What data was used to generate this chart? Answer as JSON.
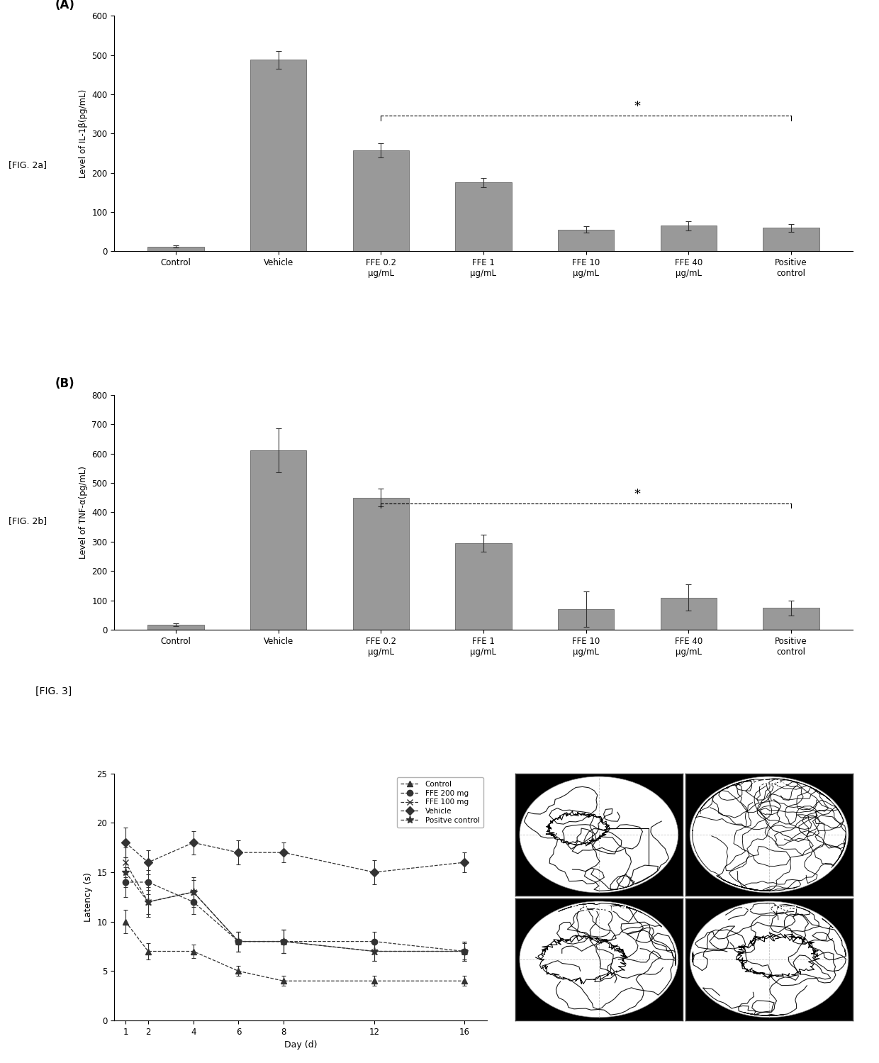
{
  "fig_a": {
    "title": "(A)",
    "categories": [
      "Control",
      "Vehicle",
      "FFE 0.2\nμg/mL",
      "FFE 1\nμg/mL",
      "FFE 10\nμg/mL",
      "FFE 40\nμg/mL",
      "Positive\ncontrol"
    ],
    "values": [
      12,
      488,
      258,
      175,
      55,
      65,
      60
    ],
    "errors": [
      3,
      22,
      18,
      12,
      8,
      12,
      10
    ],
    "ylabel": "Level of IL-1β(pg/mL)",
    "ylim": [
      0,
      600
    ],
    "yticks": [
      0,
      100,
      200,
      300,
      400,
      500,
      600
    ],
    "bar_color": "#999999",
    "sig_bracket_y": 345,
    "sig_start_idx": 2,
    "sig_end_idx": 6,
    "sig_label": "*"
  },
  "fig_b": {
    "title": "(B)",
    "categories": [
      "Control",
      "Vehicle",
      "FFE 0.2\nμg/mL",
      "FFE 1\nμg/mL",
      "FFE 10\nμg/mL",
      "FFE 40\nμg/mL",
      "Positive\ncontrol"
    ],
    "values": [
      18,
      610,
      450,
      295,
      70,
      110,
      75
    ],
    "errors": [
      5,
      75,
      30,
      30,
      60,
      45,
      25
    ],
    "ylabel": "Level of TNF-α(pg/mL)",
    "ylim": [
      0,
      800
    ],
    "yticks": [
      0,
      100,
      200,
      300,
      400,
      500,
      600,
      700,
      800
    ],
    "bar_color": "#999999",
    "sig_bracket_y": 430,
    "sig_start_idx": 2,
    "sig_end_idx": 6,
    "sig_label": "*"
  },
  "fig_c": {
    "xlabel": "Day (d)",
    "ylabel": "Latency (s)",
    "xlim": [
      0.5,
      17
    ],
    "ylim": [
      0,
      25
    ],
    "yticks": [
      0,
      5,
      10,
      15,
      20,
      25
    ],
    "xticks": [
      1,
      2,
      4,
      6,
      8,
      12,
      16
    ],
    "days": [
      1,
      2,
      4,
      6,
      8,
      12,
      16
    ],
    "series": {
      "Control": {
        "values": [
          10,
          7,
          7,
          5,
          4,
          4,
          4
        ],
        "errors": [
          1.2,
          0.8,
          0.7,
          0.5,
          0.5,
          0.5,
          0.5
        ],
        "marker": "^"
      },
      "FFE 200 mg": {
        "values": [
          14,
          14,
          12,
          8,
          8,
          8,
          7
        ],
        "errors": [
          1.5,
          1.2,
          1.2,
          1.0,
          1.2,
          1.0,
          1.0
        ],
        "marker": "o"
      },
      "FFE 100 mg": {
        "values": [
          16,
          12,
          13,
          8,
          8,
          7,
          7
        ],
        "errors": [
          1.5,
          1.2,
          1.2,
          1.0,
          1.2,
          1.0,
          1.0
        ],
        "marker": "x"
      },
      "Vehicle": {
        "values": [
          18,
          16,
          18,
          17,
          17,
          15,
          16
        ],
        "errors": [
          1.5,
          1.2,
          1.2,
          1.2,
          1.0,
          1.2,
          1.0
        ],
        "marker": "D"
      },
      "Positve control": {
        "values": [
          15,
          12,
          13,
          8,
          8,
          7,
          7
        ],
        "errors": [
          1.5,
          1.5,
          1.5,
          1.0,
          1.2,
          1.0,
          0.8
        ],
        "marker": "*"
      }
    },
    "legend_order": [
      "Control",
      "FFE 200 mg",
      "FFE 100 mg",
      "Vehicle",
      "Positve control"
    ]
  },
  "label_fig2a": "[FIG. 2a]",
  "label_fig2b": "[FIG. 2b]",
  "label_fig3": "[FIG. 3]",
  "bg_color": "#ffffff"
}
